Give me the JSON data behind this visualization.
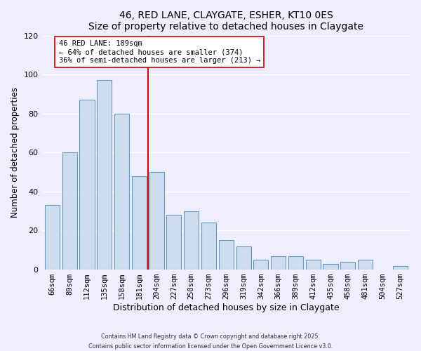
{
  "title": "46, RED LANE, CLAYGATE, ESHER, KT10 0ES",
  "subtitle": "Size of property relative to detached houses in Claygate",
  "categories": [
    "66sqm",
    "89sqm",
    "112sqm",
    "135sqm",
    "158sqm",
    "181sqm",
    "204sqm",
    "227sqm",
    "250sqm",
    "273sqm",
    "296sqm",
    "319sqm",
    "342sqm",
    "366sqm",
    "389sqm",
    "412sqm",
    "435sqm",
    "458sqm",
    "481sqm",
    "504sqm",
    "527sqm"
  ],
  "values": [
    33,
    60,
    87,
    97,
    80,
    48,
    50,
    28,
    30,
    24,
    15,
    12,
    5,
    7,
    7,
    5,
    3,
    4,
    5,
    0,
    2
  ],
  "bar_color": "#ccdded",
  "bar_edge_color": "#6699bb",
  "xlabel": "Distribution of detached houses by size in Claygate",
  "ylabel": "Number of detached properties",
  "ylim": [
    0,
    120
  ],
  "yticks": [
    0,
    20,
    40,
    60,
    80,
    100,
    120
  ],
  "property_label": "46 RED LANE: 189sqm",
  "annotation_line1": "← 64% of detached houses are smaller (374)",
  "annotation_line2": "36% of semi-detached houses are larger (213) →",
  "vline_index": 5,
  "background_color": "#eeeeff",
  "grid_color": "#ffffff",
  "footer_line1": "Contains HM Land Registry data © Crown copyright and database right 2025.",
  "footer_line2": "Contains public sector information licensed under the Open Government Licence v3.0."
}
